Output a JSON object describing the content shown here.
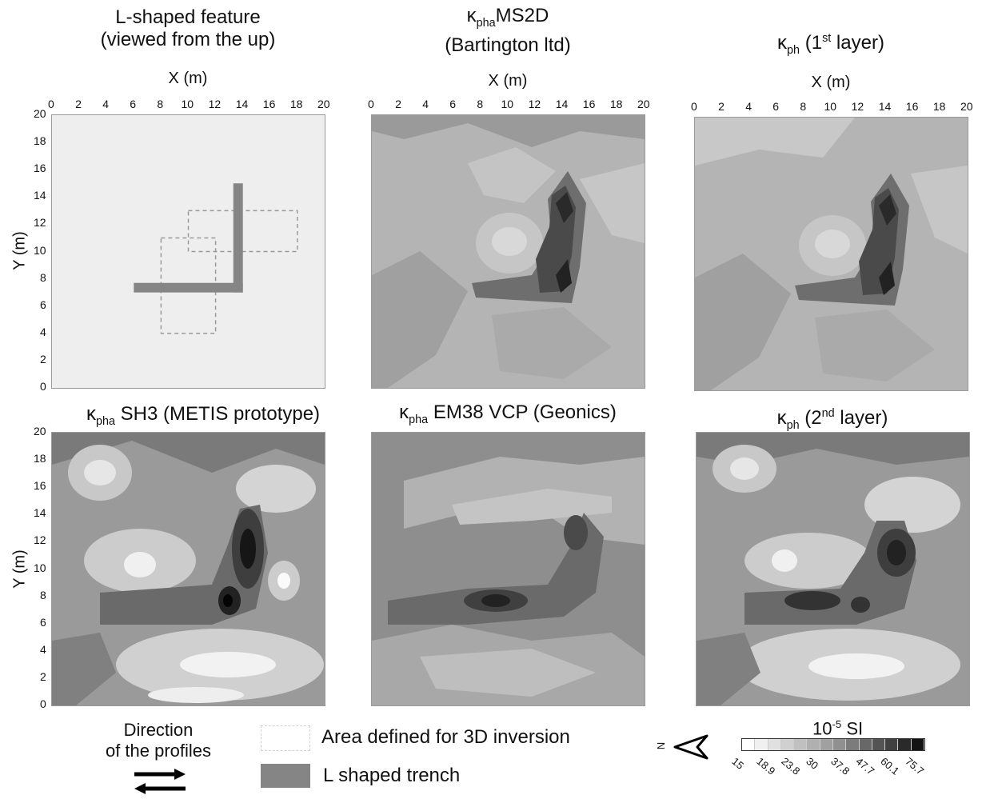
{
  "panels": [
    {
      "id": "layout",
      "title_line1": "L-shaped feature",
      "title_line2": "(viewed from the up)",
      "x_axis_label": "X (m)",
      "y_axis_label": "Y (m)"
    },
    {
      "id": "ms2d",
      "title_symbol": "κ",
      "title_sub": "pha",
      "title_rest": "MS2D",
      "title_line2": "(Bartington ltd)",
      "x_axis_label": "X (m)"
    },
    {
      "id": "layer1",
      "title_symbol": "κ",
      "title_sub": "ph",
      "title_mid": " (1",
      "title_sup": "st",
      "title_rest": " layer)",
      "x_axis_label": "X (m)"
    },
    {
      "id": "sh3",
      "title_symbol": "κ",
      "title_sub": "pha",
      "title_rest": " SH3 (METIS prototype)",
      "y_axis_label": "Y (m)"
    },
    {
      "id": "em38",
      "title_symbol": "κ",
      "title_sub": "pha",
      "title_rest": " EM38 VCP (Geonics)"
    },
    {
      "id": "layer2",
      "title_symbol": "κ",
      "title_sub": "ph",
      "title_mid": " (2",
      "title_sup": "nd",
      "title_rest": " layer)"
    }
  ],
  "axis_ticks": [
    "0",
    "2",
    "4",
    "6",
    "8",
    "10",
    "12",
    "14",
    "16",
    "18",
    "20"
  ],
  "layout_features": {
    "trench_color": "#858585",
    "dashed_boxes": [
      {
        "x0": 8,
        "x1": 12,
        "y0": 4,
        "y1": 11
      },
      {
        "x0": 10,
        "x1": 18,
        "y0": 10,
        "y1": 13
      }
    ],
    "trench_segments": [
      {
        "x0": 6,
        "x1": 14,
        "y0": 7,
        "y1": 7.7
      },
      {
        "x0": 13.3,
        "x1": 14,
        "y0": 7,
        "y1": 15
      }
    ]
  },
  "legend": {
    "direction_line1": "Direction",
    "direction_line2": "of the profiles",
    "area_label": "Area defined for 3D inversion",
    "trench_label": "L shaped trench",
    "north_label": "N",
    "colorbar_unit_base": "10",
    "colorbar_unit_exp": "-5",
    "colorbar_unit_rest": " SI",
    "colorbar_ticks": [
      "15",
      "18.9",
      "23.8",
      "30",
      "37.8",
      "47.7",
      "60.1",
      "75.7"
    ],
    "colorbar_colors": [
      "#ffffff",
      "#f0f0f0",
      "#e0e0e0",
      "#d0d0d0",
      "#c0c0c0",
      "#b0b0b0",
      "#a0a0a0",
      "#909090",
      "#7c7c7c",
      "#686868",
      "#545454",
      "#404040",
      "#2a2a2a",
      "#141414"
    ]
  }
}
